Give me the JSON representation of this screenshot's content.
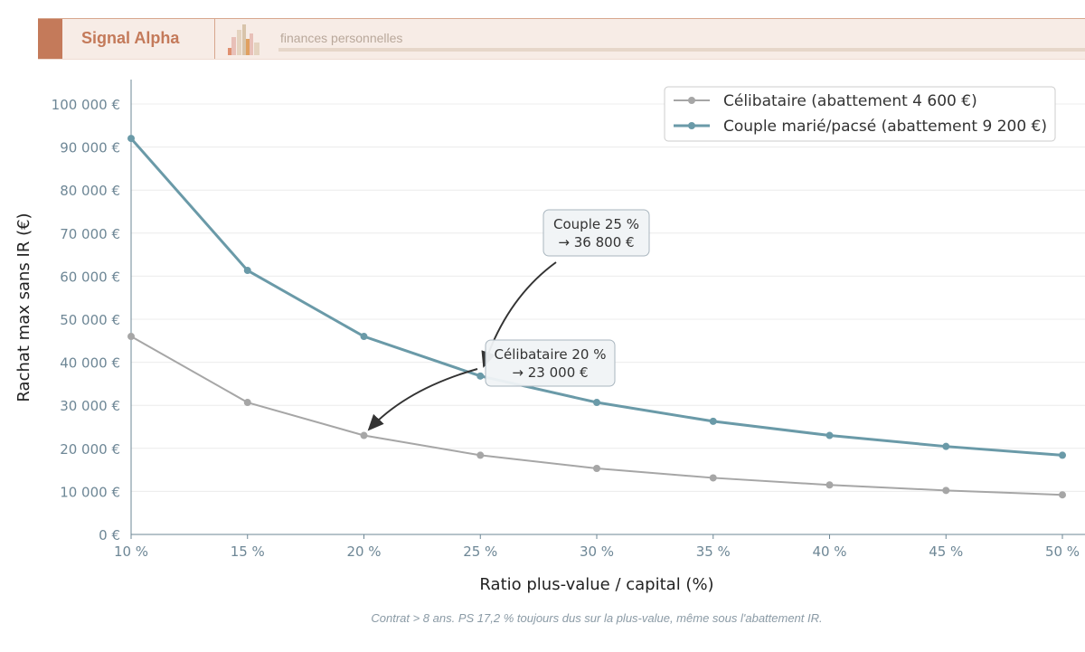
{
  "header": {
    "brand": "Signal Alpha",
    "subtitle": "finances personnelles"
  },
  "footnote": "Contrat > 8 ans. PS 17,2 % toujours dus sur la plus-value, même sous l'abattement IR.",
  "chart_data": {
    "type": "line",
    "xlabel": "Ratio plus-value / capital (%)",
    "ylabel": "Rachat max sans IR (€)",
    "x": [
      10,
      15,
      20,
      25,
      30,
      35,
      40,
      45,
      50
    ],
    "x_tick_labels": [
      "10 %",
      "15 %",
      "20 %",
      "25 %",
      "30 %",
      "35 %",
      "40 %",
      "45 %",
      "50 %"
    ],
    "y_ticks": [
      0,
      10000,
      20000,
      30000,
      40000,
      50000,
      60000,
      70000,
      80000,
      90000,
      100000
    ],
    "y_tick_labels": [
      "0 €",
      "10 000 €",
      "20 000 €",
      "30 000 €",
      "40 000 €",
      "50 000 €",
      "60 000 €",
      "70 000 €",
      "80 000 €",
      "90 000 €",
      "100 000 €"
    ],
    "xlim": [
      10,
      50
    ],
    "ylim": [
      0,
      100000
    ],
    "grid": "horizontal",
    "legend_placement": "top-right",
    "series": [
      {
        "name": "Célibataire (abattement 4 600 €)",
        "color": "#a6a6a6",
        "values": [
          46000,
          30667,
          23000,
          18400,
          15333,
          13143,
          11500,
          10222,
          9200
        ]
      },
      {
        "name": "Couple marié/pacsé (abattement 9 200 €)",
        "color": "#6a9aa8",
        "values": [
          92000,
          61333,
          46000,
          36800,
          30667,
          26286,
          23000,
          20444,
          18400
        ]
      }
    ],
    "annotations": [
      {
        "lines": [
          "Couple 25 %",
          "→ 36 800 €"
        ],
        "x": 25,
        "y": 36800
      },
      {
        "lines": [
          "Célibataire 20 %",
          "→ 23 000 €"
        ],
        "x": 20,
        "y": 23000
      }
    ]
  }
}
